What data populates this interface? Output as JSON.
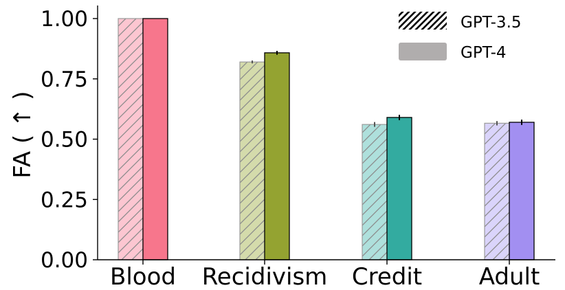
{
  "chart_data": {
    "type": "bar",
    "title": "",
    "xlabel": "",
    "ylabel": "FA ( ↑ )",
    "ylim": [
      0,
      1.05
    ],
    "yticks": [
      "0.00",
      "0.25",
      "0.50",
      "0.75",
      "1.00"
    ],
    "grid": false,
    "legend_position": "top-right",
    "categories": [
      "Blood",
      "Recidivism",
      "Credit",
      "Adult"
    ],
    "series": [
      {
        "name": "GPT-3.5",
        "hatched": true,
        "values": [
          1.0,
          0.82,
          0.561,
          0.566
        ],
        "errors": [
          0.0,
          0.006,
          0.01,
          0.009
        ]
      },
      {
        "name": "GPT-4",
        "hatched": false,
        "values": [
          1.0,
          0.858,
          0.59,
          0.57
        ],
        "errors": [
          0.0,
          0.008,
          0.011,
          0.011
        ]
      }
    ],
    "colors": {
      "gpt4": [
        "#f7768c",
        "#94a331",
        "#33aba0",
        "#a28ff1"
      ],
      "gpt35": [
        "#fcc6d1",
        "#d4dbab",
        "#aee0dc",
        "#dad4fb"
      ],
      "legend_gpt4": "#b0adad"
    }
  }
}
